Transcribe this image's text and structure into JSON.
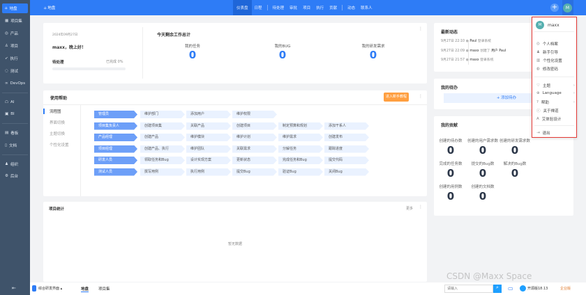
{
  "sidebar": {
    "items": [
      {
        "label": "地盘",
        "icon": "home-icon"
      },
      {
        "label": "项目集",
        "icon": "grid-icon"
      },
      {
        "label": "产品",
        "icon": "location-icon"
      },
      {
        "label": "项目",
        "icon": "project-icon"
      },
      {
        "label": "执行",
        "icon": "run-icon"
      },
      {
        "label": "测试",
        "icon": "test-icon"
      },
      {
        "label": "DevOps",
        "icon": "infinity-icon"
      },
      {
        "label": "AI",
        "icon": "robot-icon"
      },
      {
        "label": "BI",
        "icon": "chart-icon"
      },
      {
        "label": "看板",
        "icon": "kanban-icon"
      },
      {
        "label": "文档",
        "icon": "doc-icon"
      },
      {
        "label": "组织",
        "icon": "org-icon"
      },
      {
        "label": "后台",
        "icon": "gear-icon"
      }
    ],
    "collapse_icon": "collapse-icon"
  },
  "topbar": {
    "breadcrumb": "地盘",
    "nav": [
      "仪表盘",
      "日程",
      "待处理",
      "审批",
      "项目",
      "执行",
      "贡献",
      "动态",
      "联系人"
    ],
    "avatar": "M"
  },
  "welcome": {
    "date": "2024年09月27日",
    "greeting": "maxx，晚上好！",
    "pending": "待处理",
    "done": "已完成 0%",
    "progress": 0
  },
  "today": {
    "title": "今天剩余工作总计",
    "stats": [
      {
        "label": "我的任务",
        "value": "0"
      },
      {
        "label": "我的BUG",
        "value": "0"
      },
      {
        "label": "我的研发需求",
        "value": "0"
      }
    ]
  },
  "help": {
    "title": "使用帮助",
    "tutorial_button": "进入新手教程",
    "tabs": [
      "流程图",
      "界面切换",
      "主题切换",
      "个性化设置"
    ],
    "flow": [
      [
        "管理员",
        "维护部门",
        "添加用户",
        "维护权限"
      ],
      [
        "项目集负责人",
        "创建项目集",
        "关联产品",
        "创建项目",
        "制定预算和规划",
        "添加干系人"
      ],
      [
        "产品经理",
        "创建产品",
        "维护模块",
        "维护计划",
        "维护需求",
        "创建发布"
      ],
      [
        "项目经理",
        "创建产品、执行",
        "维护团队",
        "关联需求",
        "分解任务",
        "跟踪进度"
      ],
      [
        "研发人员",
        "领取任务和Bug",
        "设计实现方案",
        "更新状态",
        "完成任务和Bug",
        "提交代码"
      ],
      [
        "测试人员",
        "撰写用例",
        "执行用例",
        "提交Bug",
        "验证Bug",
        "关闭Bug"
      ]
    ]
  },
  "project_stats": {
    "title": "项目统计",
    "more": "更多",
    "empty": "暂无数据"
  },
  "dynamics": {
    "title": "最新动态",
    "items": [
      {
        "time": "9月27日 22:10",
        "user": "Paul",
        "action": "登录系统"
      },
      {
        "time": "9月27日 22:09",
        "user": "maxx",
        "action": "创建了",
        "object": "用户  Paul"
      },
      {
        "time": "9月27日 21:57",
        "user": "maxx",
        "action": "登录系统"
      }
    ]
  },
  "todo": {
    "title": "我的待办",
    "add": "+ 添加待办"
  },
  "contrib": {
    "title": "我的贡献",
    "items": [
      {
        "label": "创建的待办数",
        "value": "0"
      },
      {
        "label": "创建的用户需求数",
        "value": "0"
      },
      {
        "label": "创建的研发需求数",
        "value": "0"
      },
      {
        "label": "完成的任务数",
        "value": "0"
      },
      {
        "label": "提交的Bug数",
        "value": "0"
      },
      {
        "label": "解决的Bug数",
        "value": "0"
      },
      {
        "label": "创建的用例数",
        "value": "0"
      },
      {
        "label": "创建的文档数",
        "value": "0"
      }
    ]
  },
  "user_menu": {
    "name": "maxx",
    "avatar": "M",
    "items": [
      {
        "label": "个人档案",
        "icon": "profile-icon"
      },
      {
        "label": "新手引导",
        "icon": "guide-icon"
      },
      {
        "label": "个性化设置",
        "icon": "settings-icon"
      },
      {
        "label": "修改密码",
        "icon": "lock-icon"
      },
      {
        "label": "主题",
        "icon": "shirt-icon",
        "sub": true
      },
      {
        "label": "Language",
        "icon": "globe-icon",
        "sub": true
      },
      {
        "label": "帮助",
        "icon": "help-icon",
        "sub": true
      },
      {
        "label": "关于禅道",
        "icon": "info-icon"
      },
      {
        "label": "艾体验设计",
        "icon": "a-icon"
      },
      {
        "label": "退出",
        "icon": "logout-icon"
      }
    ]
  },
  "bottombar": {
    "interface": "综合研发界面",
    "tabs": [
      "地盘",
      "项目集"
    ],
    "search_placeholder": "请输入",
    "version": "开源版18.13",
    "enterprise": "企业版"
  },
  "watermark": "CSDN @Maxx Space",
  "colors": {
    "primary": "#2e7cf6",
    "sidebar": "#3f536a",
    "highlight_border": "#e53935",
    "orange": "#ff9f40"
  }
}
